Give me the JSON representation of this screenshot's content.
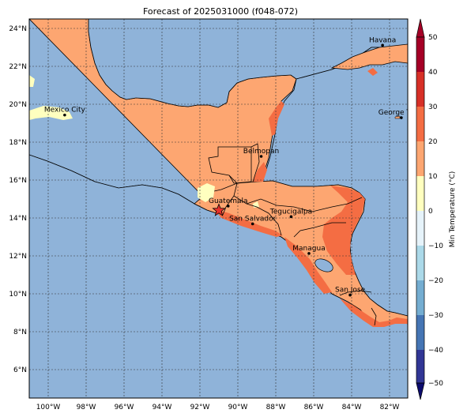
{
  "title": "Forecast of 2025031000 (f048-072)",
  "map": {
    "lat_ticks": [
      "24°N",
      "22°N",
      "20°N",
      "18°N",
      "16°N",
      "14°N",
      "12°N",
      "10°N",
      "8°N",
      "6°N"
    ],
    "lon_ticks": [
      "100°W",
      "98°W",
      "96°W",
      "94°W",
      "92°W",
      "90°W",
      "88°W",
      "86°W",
      "84°W",
      "82°W"
    ],
    "cities": [
      {
        "name": "Mexico City",
        "lat": 19.43,
        "lon": -99.13
      },
      {
        "name": "Havana",
        "lat": 23.11,
        "lon": -82.37
      },
      {
        "name": "George Town",
        "lat": 19.29,
        "lon": -81.38
      },
      {
        "name": "Belmopan",
        "lat": 17.25,
        "lon": -88.77
      },
      {
        "name": "Guatemala",
        "lat": 14.63,
        "lon": -90.51
      },
      {
        "name": "San Salvador",
        "lat": 13.69,
        "lon": -89.22
      },
      {
        "name": "Tegucigalpa",
        "lat": 14.07,
        "lon": -87.19
      },
      {
        "name": "Managua",
        "lat": 12.13,
        "lon": -86.25
      },
      {
        "name": "San Jose",
        "lat": 9.93,
        "lon": -84.08
      }
    ],
    "marker": {
      "type": "star",
      "lat": 14.4,
      "lon": -91.0
    }
  },
  "colorbar": {
    "label": "Min Temperature (°C)",
    "ticks": [
      "50",
      "40",
      "30",
      "20",
      "10",
      "0",
      "−10",
      "−20",
      "−30",
      "−40",
      "−50"
    ],
    "colors": {
      "ocean": "#8fb3d9",
      "band_10_20": "#fda671",
      "band_20_30": "#f46d43",
      "band_0_10": "#ffffbf",
      "band_30_40": "#d73027"
    }
  }
}
